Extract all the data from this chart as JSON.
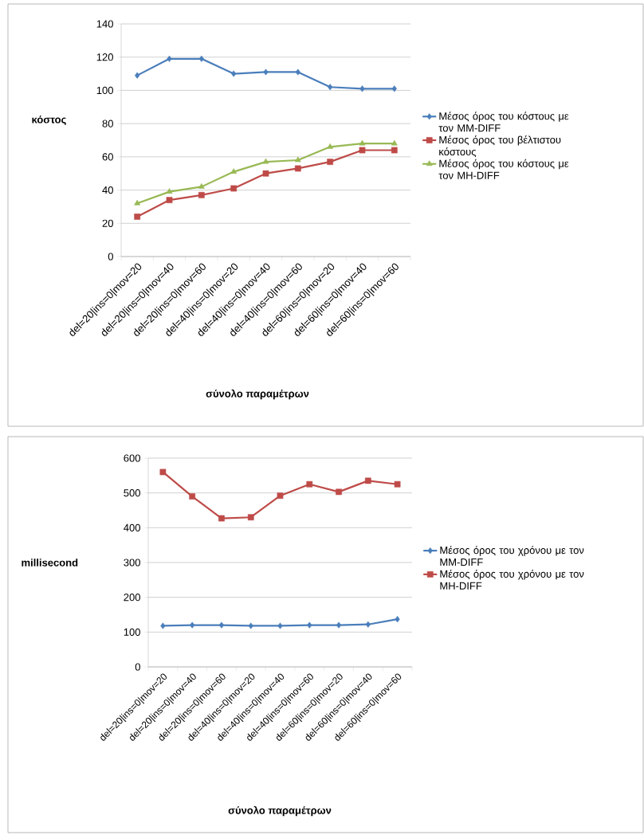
{
  "chart_data": [
    {
      "type": "line",
      "xlabel": "σύνολο παραμέτρων",
      "ylabel": "κόστος",
      "categories": [
        "del=20|ins=0|mov=20",
        "del=20|ins=0|mov=40",
        "del=20|ins=0|mov=60",
        "del=40|ins=0|mov=20",
        "del=40|ins=0|mov=40",
        "del=40|ins=0|mov=60",
        "del=60|ins=0|mov=20",
        "del=60|ins=0|mov=40",
        "del=60|ins=0|mov=60"
      ],
      "series": [
        {
          "name": "Μέσος όρος του  κόστους με τον MM-DIFF",
          "color": "#4a7ebb",
          "marker": "diamond",
          "values": [
            109,
            119,
            119,
            110,
            111,
            111,
            102,
            101,
            101
          ]
        },
        {
          "name": "Μέσος όρος του  βέλτιστου κόστους",
          "color": "#be4b48",
          "marker": "square",
          "values": [
            24,
            34,
            37,
            41,
            50,
            53,
            57,
            64,
            64
          ]
        },
        {
          "name": "Μέσος όρος του  κόστους με τον MH-DIFF",
          "color": "#98b954",
          "marker": "triangle",
          "values": [
            32,
            39,
            42,
            51,
            57,
            58,
            66,
            68,
            68
          ]
        }
      ],
      "ylim": [
        0,
        140
      ],
      "yticks": [
        0,
        20,
        40,
        60,
        80,
        100,
        120,
        140
      ],
      "grid": "y",
      "legend": "right"
    },
    {
      "type": "line",
      "xlabel": "σύνολο παραμέτρων",
      "ylabel": "millisecond",
      "categories": [
        "del=20|ins=0|mov=20",
        "del=20|ins=0|mov=40",
        "del=20|ins=0|mov=60",
        "del=40|ins=0|mov=20",
        "del=40|ins=0|mov=40",
        "del=40|ins=0|mov=60",
        "del=60|ins=0|mov=20",
        "del=60|ins=0|mov=40",
        "del=60|ins=0|mov=60"
      ],
      "series": [
        {
          "name": "Μέσος όρος του χρόνου με τον MM-DIFF",
          "color": "#4a7ebb",
          "marker": "diamond",
          "values": [
            118,
            120,
            120,
            118,
            118,
            120,
            120,
            122,
            137
          ]
        },
        {
          "name": "Μέσος όρος του χρόνου με τον MH-DIFF",
          "color": "#be4b48",
          "marker": "square",
          "values": [
            560,
            490,
            427,
            430,
            492,
            525,
            503,
            535,
            525
          ]
        }
      ],
      "ylim": [
        0,
        600
      ],
      "yticks": [
        0,
        100,
        200,
        300,
        400,
        500,
        600
      ],
      "grid": "y",
      "legend": "right"
    }
  ]
}
